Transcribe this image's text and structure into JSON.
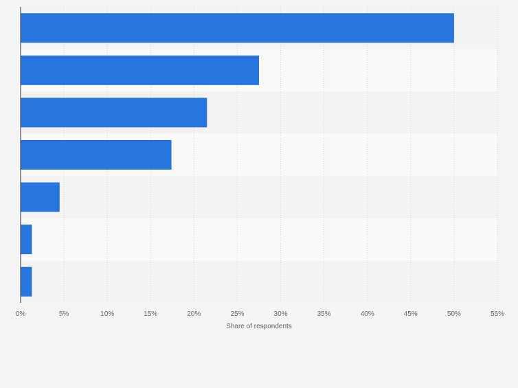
{
  "chart_data": {
    "type": "bar",
    "orientation": "horizontal",
    "title": "",
    "xlabel": "Share of respondents",
    "ylabel": "",
    "categories": [
      "",
      "",
      "",
      "",
      "",
      "",
      ""
    ],
    "values": [
      50.0,
      27.5,
      21.5,
      17.4,
      4.5,
      1.3,
      1.3
    ],
    "value_unit": "%",
    "xlim": [
      0,
      55
    ],
    "xticks": [
      0,
      5,
      10,
      15,
      20,
      25,
      30,
      35,
      40,
      45,
      50,
      55
    ],
    "xtick_labels": [
      "0%",
      "5%",
      "10%",
      "15%",
      "20%",
      "25%",
      "30%",
      "35%",
      "40%",
      "45%",
      "50%",
      "55%"
    ],
    "grid": true,
    "legend": "none",
    "colors": {
      "bar": "#2876dd",
      "band_light": "#f9f9f9",
      "band_dark": "#f3f3f3",
      "grid": "#d8d8d8",
      "axis": "#333333",
      "tick_text": "#666666",
      "background": "#f4f4f4"
    }
  }
}
